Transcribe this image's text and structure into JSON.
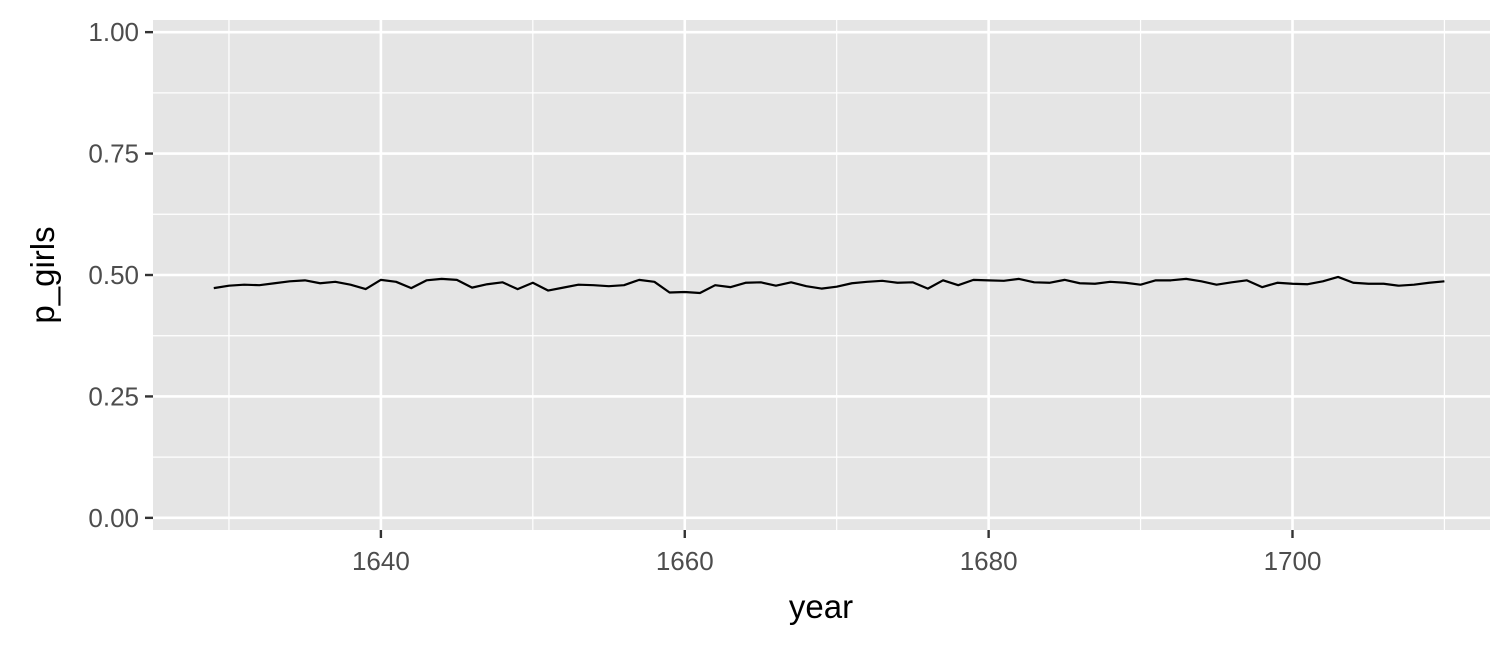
{
  "chart_data": {
    "type": "line",
    "title": "",
    "xlabel": "year",
    "ylabel": "p_girls",
    "xlim": [
      1625,
      1713
    ],
    "ylim": [
      -0.025,
      1.025
    ],
    "x_ticks": [
      1640,
      1660,
      1680,
      1700
    ],
    "x_tick_labels": [
      "1640",
      "1660",
      "1680",
      "1700"
    ],
    "y_ticks": [
      0,
      0.25,
      0.5,
      0.75,
      1
    ],
    "y_tick_labels": [
      "0.00",
      "0.25",
      "0.50",
      "0.75",
      "1.00"
    ],
    "grid": true,
    "colors": {
      "panel": "#e5e5e5",
      "grid": "#ffffff",
      "line": "#000000",
      "tick_text": "#4d4d4d"
    },
    "series": [
      {
        "x": [
          1629,
          1630,
          1631,
          1632,
          1633,
          1634,
          1635,
          1636,
          1637,
          1638,
          1639,
          1640,
          1641,
          1642,
          1643,
          1644,
          1645,
          1646,
          1647,
          1648,
          1649,
          1650,
          1651,
          1652,
          1653,
          1654,
          1655,
          1656,
          1657,
          1658,
          1659,
          1660,
          1661,
          1662,
          1663,
          1664,
          1665,
          1666,
          1667,
          1668,
          1669,
          1670,
          1671,
          1672,
          1673,
          1674,
          1675,
          1676,
          1677,
          1678,
          1679,
          1680,
          1681,
          1682,
          1683,
          1684,
          1685,
          1686,
          1687,
          1688,
          1689,
          1690,
          1691,
          1692,
          1693,
          1694,
          1695,
          1696,
          1697,
          1698,
          1699,
          1700,
          1701,
          1702,
          1703,
          1704,
          1705,
          1706,
          1707,
          1708,
          1709,
          1710
        ],
        "y": [
          0.473,
          0.478,
          0.48,
          0.479,
          0.483,
          0.487,
          0.489,
          0.483,
          0.486,
          0.48,
          0.471,
          0.49,
          0.486,
          0.473,
          0.489,
          0.492,
          0.49,
          0.474,
          0.481,
          0.485,
          0.471,
          0.484,
          0.468,
          0.474,
          0.48,
          0.479,
          0.477,
          0.479,
          0.49,
          0.486,
          0.464,
          0.465,
          0.463,
          0.479,
          0.475,
          0.484,
          0.485,
          0.478,
          0.485,
          0.477,
          0.472,
          0.476,
          0.483,
          0.486,
          0.488,
          0.484,
          0.485,
          0.472,
          0.489,
          0.479,
          0.49,
          0.489,
          0.488,
          0.492,
          0.485,
          0.484,
          0.49,
          0.483,
          0.482,
          0.486,
          0.484,
          0.48,
          0.489,
          0.489,
          0.492,
          0.487,
          0.48,
          0.485,
          0.489,
          0.475,
          0.484,
          0.482,
          0.481,
          0.487,
          0.496,
          0.484,
          0.482,
          0.482,
          0.478,
          0.48,
          0.484,
          0.487
        ]
      }
    ]
  }
}
